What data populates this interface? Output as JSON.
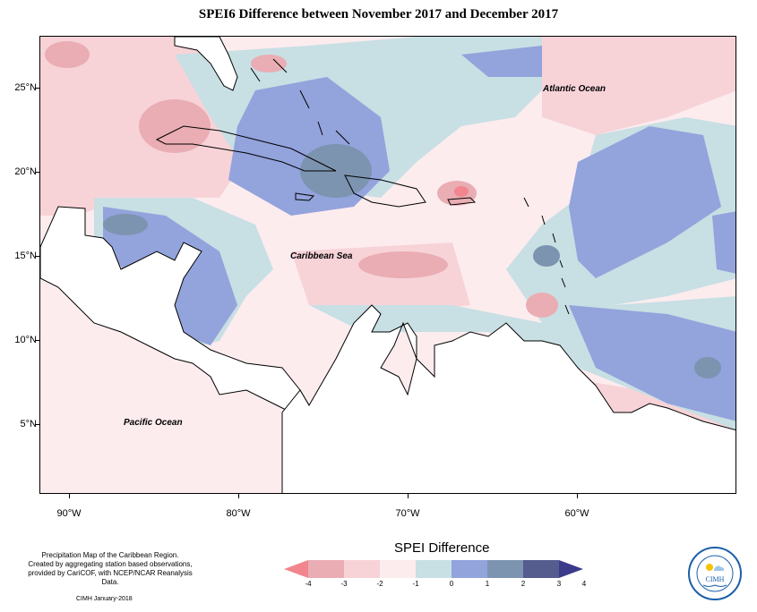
{
  "title": "SPEI6 Difference between November 2017 and December 2017",
  "latitude_labels": [
    "25°N",
    "20°N",
    "15°N",
    "10°N",
    "5°N"
  ],
  "longitude_labels": [
    "90°W",
    "80°W",
    "70°W",
    "60°W"
  ],
  "ocean_labels": {
    "atlantic": "Atlantic Ocean",
    "caribbean": "Caribbean Sea",
    "pacific": "Pacific Ocean"
  },
  "footer": {
    "line1": "Precipitation Map of the Caribbean Region.",
    "line2": "Created by aggregating station based observations,",
    "line3": "provided by CariCOF, with NCEP/NCAR Reanalysis Data.",
    "credit": "CIMH January-2018"
  },
  "legend": {
    "title": "SPEI Difference",
    "ticks": [
      "-4",
      "-3",
      "-2",
      "-1",
      "0",
      "1",
      "2",
      "3",
      "4"
    ],
    "colors": [
      "#f2858d",
      "#e9adb3",
      "#f7d3d8",
      "#fcecee",
      "#c8dfe4",
      "#93a3dc",
      "#7c94b0",
      "#545d8e",
      "#3b3a8b"
    ]
  },
  "logo": {
    "name": "CIMH",
    "text_top": "Caribbean Institute for",
    "text_bottom": "Meteorology and Hydrology"
  }
}
